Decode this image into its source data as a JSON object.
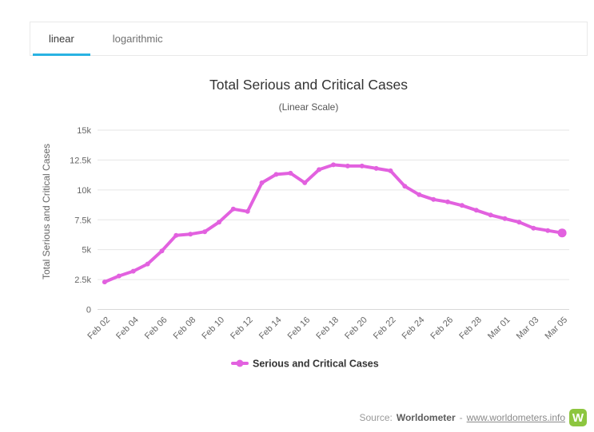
{
  "tabs": {
    "items": [
      {
        "label": "linear",
        "active": true
      },
      {
        "label": "logarithmic",
        "active": false
      }
    ]
  },
  "chart_data": {
    "type": "line",
    "title": "Total Serious and Critical Cases",
    "subtitle": "(Linear Scale)",
    "ylabel": "Total Serious and Critical Cases",
    "legend": [
      "Serious and Critical Cases"
    ],
    "legend_position": "bottom-center",
    "grid": "horizontal",
    "ylim": [
      0,
      15000
    ],
    "ytick_values": [
      0,
      2500,
      5000,
      7500,
      10000,
      12500,
      15000
    ],
    "ytick_labels": [
      "0",
      "2.5k",
      "5k",
      "7.5k",
      "10k",
      "12.5k",
      "15k"
    ],
    "categories": [
      "Feb 02",
      "Feb 03",
      "Feb 04",
      "Feb 05",
      "Feb 06",
      "Feb 07",
      "Feb 08",
      "Feb 09",
      "Feb 10",
      "Feb 11",
      "Feb 12",
      "Feb 13",
      "Feb 14",
      "Feb 15",
      "Feb 16",
      "Feb 17",
      "Feb 18",
      "Feb 19",
      "Feb 20",
      "Feb 21",
      "Feb 22",
      "Feb 23",
      "Feb 24",
      "Feb 25",
      "Feb 26",
      "Feb 27",
      "Feb 28",
      "Feb 29",
      "Mar 01",
      "Mar 02",
      "Mar 03",
      "Mar 04",
      "Mar 05"
    ],
    "values": [
      2300,
      2800,
      3200,
      3800,
      4900,
      6200,
      6300,
      6500,
      7300,
      8400,
      8200,
      10600,
      11300,
      11400,
      10600,
      11700,
      12100,
      12000,
      12000,
      11800,
      11600,
      10300,
      9600,
      9200,
      9000,
      8700,
      8300,
      7900,
      7600,
      7300,
      6800,
      6600,
      6400
    ],
    "xtick_every": 2
  },
  "colors": {
    "series_line": "#e261df",
    "tab_active_underline": "#29b2e2",
    "gridline": "#e6e6e6",
    "axis_text": "#666666",
    "title_text": "#333333",
    "logo_green": "#8dc63f"
  },
  "footer": {
    "source_prefix": "Source:",
    "source_name": "Worldometer",
    "separator": "-",
    "link_text": "www.worldometers.info",
    "logo_letter": "W"
  }
}
